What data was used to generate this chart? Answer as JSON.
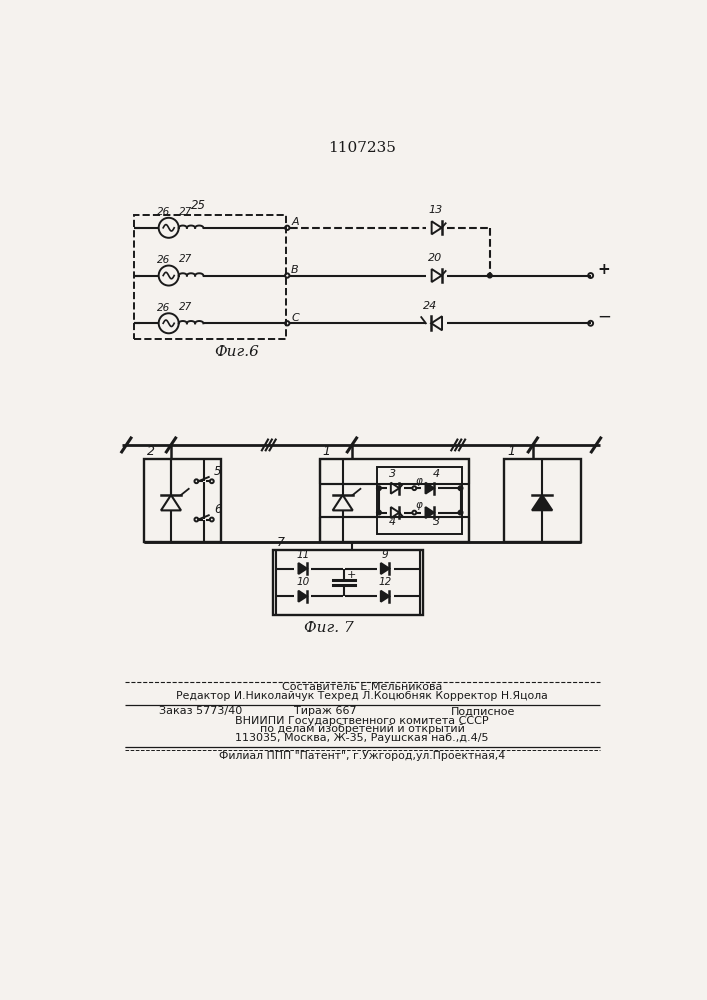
{
  "title": "1107235",
  "fig6_label": "Фиг.6",
  "fig7_label": "Фиг. 7",
  "footer_lines": [
    "Составитель Е.Мельникова",
    "Редактор И.Николайчук Техред Л.Коцюбняк Корректор Н.Яцола",
    "Заказ 5773/40",
    "Тираж 667",
    "Подписное",
    "ВНИИПИ Государственного комитета СССР",
    "по делам изобретений и открытий",
    "113035, Москва, Ж-35, Раушская наб.,д.4/5",
    "Филиал ППП \"Патент\", г.Ужгород,ул.Проектная,4"
  ],
  "bg_color": "#f5f2ee",
  "line_color": "#1a1a1a"
}
